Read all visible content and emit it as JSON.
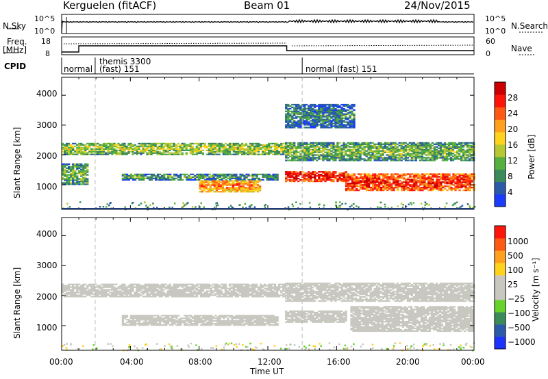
{
  "header": {
    "station": "Kerguelen (fitACF)",
    "beam": "Beam 01",
    "date": "24/Nov/2015"
  },
  "strip_panels": {
    "nsky": {
      "label": "N.Sky",
      "ticks_left": [
        "10^5",
        "10^0"
      ],
      "right_label": "N.Search",
      "ticks_right": [
        "10^5",
        "10^0"
      ]
    },
    "freq": {
      "label_line1": "Freq.",
      "label_line2": "[MHz]",
      "ticks_left": [
        "18",
        "8"
      ],
      "right_label": "Nave",
      "ticks_right": [
        "60",
        "0"
      ]
    },
    "cpid": {
      "label": "CPID",
      "segments": [
        {
          "start_hour": 0.0,
          "line1": "",
          "line2": "normal"
        },
        {
          "start_hour": 1.95,
          "line1": "themis 3300",
          "line2": "(fast) 151"
        },
        {
          "start_hour": 14.0,
          "line1": "",
          "line2": "normal (fast) 151"
        }
      ]
    }
  },
  "chart_data": [
    {
      "type": "heatmap",
      "title": "",
      "ylabel": "Slant Range [km]",
      "xlabel": "",
      "ylim": [
        180,
        4600
      ],
      "yticks": [
        "1000",
        "2000",
        "3000",
        "4000"
      ],
      "xlim_hours": [
        0,
        24
      ],
      "colorbar": {
        "label": "Power [dB]",
        "ticks": [
          "4",
          "8",
          "12",
          "16",
          "20",
          "24",
          "28"
        ],
        "range": [
          0,
          30
        ],
        "colors": [
          "#1a3cff",
          "#2a5aa8",
          "#3a8a5a",
          "#55b040",
          "#b8c832",
          "#ffd21e",
          "#ffa01e",
          "#ff5a14",
          "#ff140a",
          "#cc0000"
        ]
      },
      "echo_bands": [
        {
          "t0": 0.0,
          "t1": 13.0,
          "r0": 2000,
          "r1": 2400,
          "power": 14
        },
        {
          "t0": 13.0,
          "t1": 24.0,
          "r0": 1800,
          "r1": 2400,
          "power": 12
        },
        {
          "t0": 0.0,
          "t1": 1.5,
          "r0": 1000,
          "r1": 1700,
          "power": 12
        },
        {
          "t0": 3.5,
          "t1": 12.5,
          "r0": 1150,
          "r1": 1350,
          "power": 10
        },
        {
          "t0": 8.0,
          "t1": 11.5,
          "r0": 750,
          "r1": 1150,
          "power": 22
        },
        {
          "t0": 13.0,
          "t1": 16.5,
          "r0": 1100,
          "r1": 1450,
          "power": 28
        },
        {
          "t0": 16.5,
          "t1": 24.0,
          "r0": 800,
          "r1": 1350,
          "power": 26
        },
        {
          "t0": 13.0,
          "t1": 17.0,
          "r0": 2900,
          "r1": 3700,
          "power": 8
        }
      ]
    },
    {
      "type": "heatmap",
      "title": "",
      "ylabel": "Slant Range [km]",
      "xlabel": "Time UT",
      "ylim": [
        180,
        4600
      ],
      "yticks": [
        "1000",
        "2000",
        "3000",
        "4000"
      ],
      "xlim_hours": [
        0,
        24
      ],
      "xticks": [
        "00:00",
        "04:00",
        "08:00",
        "12:00",
        "16:00",
        "20:00",
        "00:00"
      ],
      "colorbar": {
        "label": "Velocity [m s⁻¹]",
        "ticks": [
          "1000",
          "500",
          "100",
          "25",
          "−25",
          "−100",
          "−500",
          "−1000"
        ],
        "range": [
          -1200,
          1200
        ],
        "colors": [
          "#1e32ff",
          "#2a5aa8",
          "#3a8a5a",
          "#66d22a",
          "#c8c8c0",
          "#c8c8c0",
          "#ffd21e",
          "#ffa01e",
          "#ff5a14",
          "#ff140a"
        ]
      },
      "echo_bands": [
        {
          "t0": 0.0,
          "t1": 13.0,
          "r0": 1950,
          "r1": 2400,
          "velocity": 0
        },
        {
          "t0": 13.0,
          "t1": 24.0,
          "r0": 1800,
          "r1": 2400,
          "velocity": 0
        },
        {
          "t0": 3.5,
          "t1": 12.5,
          "r0": 1000,
          "r1": 1350,
          "velocity": 0
        },
        {
          "t0": 13.0,
          "t1": 16.5,
          "r0": 1100,
          "r1": 1500,
          "velocity": 0
        },
        {
          "t0": 16.8,
          "t1": 24.0,
          "r0": 800,
          "r1": 1650,
          "velocity": 110
        }
      ]
    }
  ]
}
